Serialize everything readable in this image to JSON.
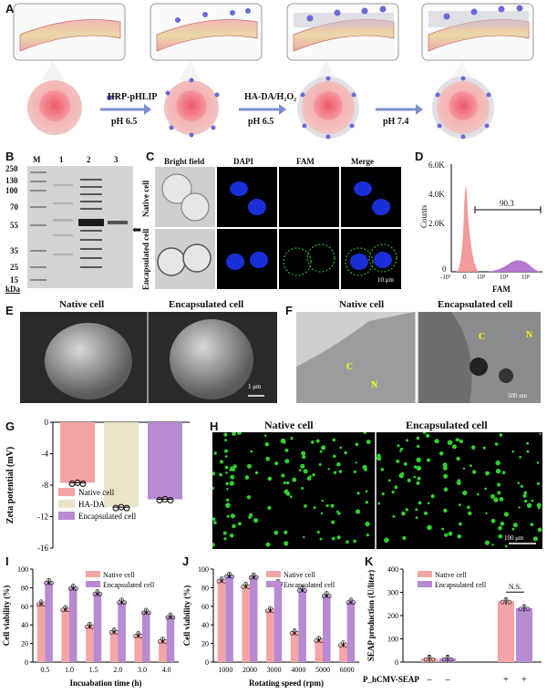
{
  "panels": {
    "A": "A",
    "B": "B",
    "C": "C",
    "D": "D",
    "E": "E",
    "F": "F",
    "G": "G",
    "H": "H",
    "I": "I",
    "J": "J",
    "K": "K"
  },
  "panelA": {
    "step1_label": "HRP-pHLIP",
    "step1_ph": "pH 6.5",
    "step2_label": "HA-DA/H₂O₂",
    "step2_ph": "pH 6.5",
    "step3_ph": "pH 7.4"
  },
  "panelB": {
    "lanes": [
      "M",
      "1",
      "2",
      "3"
    ],
    "markers": [
      "250",
      "130",
      "100",
      "70",
      "55",
      "35",
      "25",
      "15"
    ],
    "unit": "kDa",
    "arrow": "⬅"
  },
  "panelC": {
    "columns": [
      "Bright field",
      "DAPI",
      "FAM",
      "Merge"
    ],
    "rows": [
      "Native cell",
      "Encapsulated cell"
    ],
    "scale": "10 μm"
  },
  "panelD": {
    "ylabel": "Counts",
    "xlabel": "FAM",
    "yticks": [
      "6.0K",
      "4.0K",
      "2.0K",
      "0"
    ],
    "xticks": [
      "-10³",
      "0",
      "10³",
      "10⁴",
      "10⁵"
    ],
    "gate_value": "90.3"
  },
  "panelE": {
    "left": "Native cell",
    "right": "Encapsulated cell",
    "scale": "1 μm"
  },
  "panelF": {
    "left": "Native cell",
    "right": "Encapsulated cell",
    "C": "C",
    "N": "N",
    "scale": "500 nm"
  },
  "panelH": {
    "left": "Native cell",
    "right": "Encapsulated cell",
    "scale": "100 μm"
  },
  "colors": {
    "native": "#f4a4a4",
    "hada": "#ece4c8",
    "encap": "#b88ad2",
    "fitc": "#2fd12f"
  },
  "chart_data": [
    {
      "id": "G",
      "type": "bar",
      "ylabel": "Zeta potential (mV)",
      "ylim": [
        -16,
        0
      ],
      "yticks": [
        "0",
        "-4",
        "-8",
        "-12",
        "-16"
      ],
      "categories": [
        "Native cell",
        "HA-DA",
        "Encapsulated cell"
      ],
      "values": [
        -7.7,
        -10.8,
        -9.8
      ],
      "legend": [
        "Native cell",
        "HA-DA",
        "Encapsulated cell"
      ]
    },
    {
      "id": "I",
      "type": "bar",
      "xlabel": "Incuabation time (h)",
      "ylabel": "Cell viability (%)",
      "ylim": [
        0,
        100
      ],
      "yticks": [
        "0",
        "20",
        "40",
        "60",
        "80",
        "100"
      ],
      "categories": [
        "0.5",
        "1.0",
        "1.5",
        "2.0",
        "3.0",
        "4.0"
      ],
      "series": [
        {
          "name": "Native cell",
          "values": [
            63,
            57,
            39,
            33,
            29,
            23
          ]
        },
        {
          "name": "Encapsulated cell",
          "values": [
            86,
            80,
            74,
            65,
            54,
            49
          ]
        }
      ]
    },
    {
      "id": "J",
      "type": "bar",
      "xlabel": "Rotating speed (rpm)",
      "ylabel": "Cell viability (%)",
      "ylim": [
        0,
        100
      ],
      "yticks": [
        "0",
        "20",
        "40",
        "60",
        "80",
        "100"
      ],
      "categories": [
        "1000",
        "2000",
        "3000",
        "4000",
        "5000",
        "6000"
      ],
      "series": [
        {
          "name": "Native cell",
          "values": [
            88,
            82,
            56,
            32,
            24,
            19
          ]
        },
        {
          "name": "Encapsulated cell",
          "values": [
            93,
            92,
            85,
            78,
            72,
            65
          ]
        }
      ]
    },
    {
      "id": "K",
      "type": "bar",
      "ylabel": "SEAP production (U/liter)",
      "ylim": [
        0,
        400
      ],
      "yticks": [
        "0",
        "100",
        "200",
        "300",
        "400"
      ],
      "xrow_label": "P_hCMV-SEAP",
      "xrow_values": [
        "–",
        "–",
        "+",
        "+"
      ],
      "series": [
        {
          "name": "Native cell",
          "values": [
            15,
            262
          ]
        },
        {
          "name": "Encapsulated cell",
          "values": [
            15,
            232
          ]
        }
      ],
      "annotation": "N.S."
    }
  ]
}
